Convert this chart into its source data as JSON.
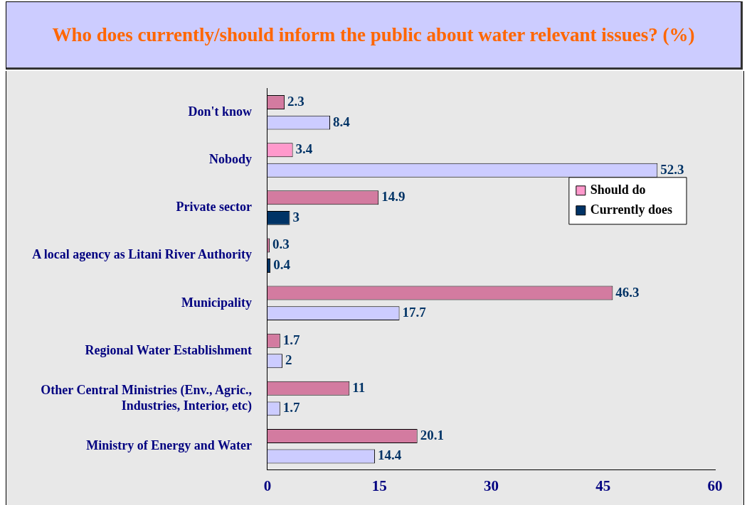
{
  "chart_data": {
    "type": "bar",
    "orientation": "horizontal",
    "title": "Who does currently/should inform the public about water relevant issues? (%)",
    "categories": [
      "Don't know",
      "Nobody",
      "Private sector",
      "A local agency as Litani River Authority",
      "Municipality",
      "Regional Water Establishment",
      "Other Central Ministries (Env., Agric., Industries, Interior, etc)",
      "Ministry of Energy and Water"
    ],
    "series": [
      {
        "name": "Should do",
        "color": "#ff99cc",
        "colors": [
          "#d37ba0",
          "#ff99cc",
          "#d37ba0",
          "#d37ba0",
          "#d37ba0",
          "#d37ba0",
          "#d37ba0",
          "#d37ba0"
        ],
        "values": [
          2.3,
          3.4,
          14.9,
          0.3,
          46.3,
          1.7,
          11,
          20.1
        ]
      },
      {
        "name": "Currently does",
        "color": "#003366",
        "colors": [
          "#ccccff",
          "#ccccff",
          "#003366",
          "#003366",
          "#ccccff",
          "#ccccff",
          "#ccccff",
          "#ccccff"
        ],
        "values": [
          8.4,
          52.3,
          3,
          0.4,
          17.7,
          2,
          1.7,
          14.4
        ]
      }
    ],
    "xlim": [
      0,
      60
    ],
    "xticks": [
      0,
      15,
      30,
      45,
      60
    ],
    "grid": false,
    "legend": "top right",
    "data_labels": true
  }
}
